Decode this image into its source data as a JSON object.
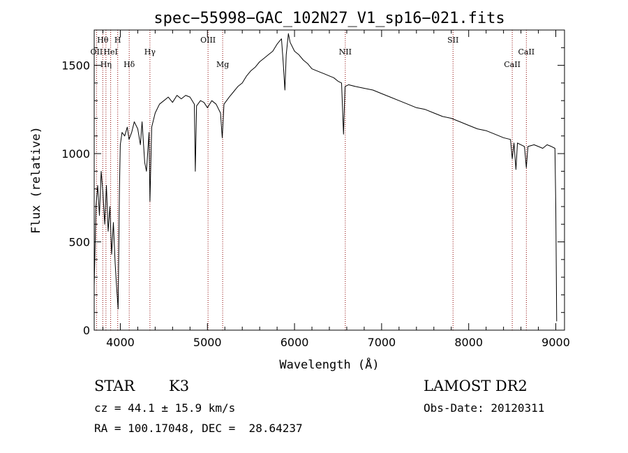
{
  "chart_data": {
    "type": "line",
    "title": "spec−55998−GAC_102N27_V1_sp16−021.fits",
    "xlabel": "Wavelength (Å)",
    "ylabel": "Flux (relative)",
    "xlim": [
      3700,
      9100
    ],
    "ylim": [
      0,
      1700
    ],
    "xticks": [
      4000,
      5000,
      6000,
      7000,
      8000,
      9000
    ],
    "yticks": [
      0,
      500,
      1000,
      1500
    ],
    "grid": false,
    "line_color": "#000000",
    "marker_color": "#8b0000",
    "series": [
      {
        "points": [
          [
            3700,
            250
          ],
          [
            3720,
            700
          ],
          [
            3740,
            820
          ],
          [
            3760,
            650
          ],
          [
            3780,
            900
          ],
          [
            3800,
            780
          ],
          [
            3820,
            600
          ],
          [
            3840,
            820
          ],
          [
            3860,
            560
          ],
          [
            3880,
            700
          ],
          [
            3900,
            430
          ],
          [
            3920,
            610
          ],
          [
            3940,
            380
          ],
          [
            3960,
            220
          ],
          [
            3975,
            120
          ],
          [
            3990,
            800
          ],
          [
            4000,
            1050
          ],
          [
            4020,
            1120
          ],
          [
            4050,
            1100
          ],
          [
            4080,
            1150
          ],
          [
            4100,
            1080
          ],
          [
            4130,
            1120
          ],
          [
            4160,
            1180
          ],
          [
            4200,
            1140
          ],
          [
            4230,
            1050
          ],
          [
            4250,
            1180
          ],
          [
            4280,
            950
          ],
          [
            4300,
            900
          ],
          [
            4330,
            1120
          ],
          [
            4340,
            730
          ],
          [
            4360,
            1150
          ],
          [
            4400,
            1230
          ],
          [
            4450,
            1280
          ],
          [
            4500,
            1300
          ],
          [
            4550,
            1320
          ],
          [
            4600,
            1290
          ],
          [
            4650,
            1330
          ],
          [
            4700,
            1310
          ],
          [
            4750,
            1330
          ],
          [
            4800,
            1320
          ],
          [
            4850,
            1280
          ],
          [
            4861,
            900
          ],
          [
            4875,
            1270
          ],
          [
            4920,
            1300
          ],
          [
            4960,
            1290
          ],
          [
            5000,
            1260
          ],
          [
            5050,
            1300
          ],
          [
            5100,
            1280
          ],
          [
            5150,
            1230
          ],
          [
            5170,
            1090
          ],
          [
            5190,
            1280
          ],
          [
            5250,
            1320
          ],
          [
            5300,
            1350
          ],
          [
            5350,
            1380
          ],
          [
            5400,
            1400
          ],
          [
            5450,
            1440
          ],
          [
            5500,
            1470
          ],
          [
            5550,
            1490
          ],
          [
            5600,
            1520
          ],
          [
            5650,
            1540
          ],
          [
            5700,
            1560
          ],
          [
            5750,
            1580
          ],
          [
            5800,
            1620
          ],
          [
            5850,
            1650
          ],
          [
            5870,
            1520
          ],
          [
            5890,
            1360
          ],
          [
            5905,
            1560
          ],
          [
            5930,
            1680
          ],
          [
            5950,
            1630
          ],
          [
            6000,
            1580
          ],
          [
            6050,
            1560
          ],
          [
            6100,
            1530
          ],
          [
            6150,
            1510
          ],
          [
            6200,
            1480
          ],
          [
            6250,
            1470
          ],
          [
            6300,
            1460
          ],
          [
            6350,
            1450
          ],
          [
            6400,
            1440
          ],
          [
            6450,
            1430
          ],
          [
            6500,
            1410
          ],
          [
            6540,
            1400
          ],
          [
            6563,
            1110
          ],
          [
            6580,
            1380
          ],
          [
            6620,
            1390
          ],
          [
            6700,
            1380
          ],
          [
            6800,
            1370
          ],
          [
            6900,
            1360
          ],
          [
            7000,
            1340
          ],
          [
            7100,
            1320
          ],
          [
            7200,
            1300
          ],
          [
            7300,
            1280
          ],
          [
            7400,
            1260
          ],
          [
            7500,
            1250
          ],
          [
            7600,
            1230
          ],
          [
            7700,
            1210
          ],
          [
            7800,
            1200
          ],
          [
            7900,
            1180
          ],
          [
            8000,
            1160
          ],
          [
            8100,
            1140
          ],
          [
            8200,
            1130
          ],
          [
            8300,
            1110
          ],
          [
            8400,
            1090
          ],
          [
            8480,
            1080
          ],
          [
            8500,
            970
          ],
          [
            8520,
            1060
          ],
          [
            8542,
            910
          ],
          [
            8560,
            1060
          ],
          [
            8600,
            1050
          ],
          [
            8640,
            1040
          ],
          [
            8662,
            920
          ],
          [
            8680,
            1040
          ],
          [
            8750,
            1050
          ],
          [
            8800,
            1040
          ],
          [
            8850,
            1030
          ],
          [
            8900,
            1050
          ],
          [
            8950,
            1040
          ],
          [
            8990,
            1030
          ],
          [
            9000,
            700
          ],
          [
            9010,
            50
          ]
        ]
      }
    ],
    "annotations": [
      {
        "label": "Hθ",
        "x": 3798,
        "row": 1
      },
      {
        "label": "H",
        "x": 3970,
        "row": 1
      },
      {
        "label": "OII",
        "x": 3727,
        "row": 2
      },
      {
        "label": "HeI",
        "x": 3889,
        "row": 2
      },
      {
        "label": "Hη",
        "x": 3835,
        "row": 3
      },
      {
        "label": "Hδ",
        "x": 4102,
        "row": 3
      },
      {
        "label": "Hγ",
        "x": 4340,
        "row": 2
      },
      {
        "label": "OIII",
        "x": 5007,
        "row": 1
      },
      {
        "label": "Mg",
        "x": 5175,
        "row": 3
      },
      {
        "label": "NII",
        "x": 6583,
        "row": 2
      },
      {
        "label": "SII",
        "x": 7820,
        "row": 1
      },
      {
        "label": "CaII",
        "x": 8500,
        "row": 3
      },
      {
        "label": "CaII",
        "x": 8662,
        "row": 2
      }
    ]
  },
  "info": {
    "object_class": "STAR",
    "subclass": "K3",
    "survey": "LAMOST DR2",
    "velocity": "cz = 44.1 ± 15.9 km/s",
    "obs_date": "Obs-Date: 20120311",
    "coords": "RA = 100.17048, DEC =  28.64237"
  }
}
